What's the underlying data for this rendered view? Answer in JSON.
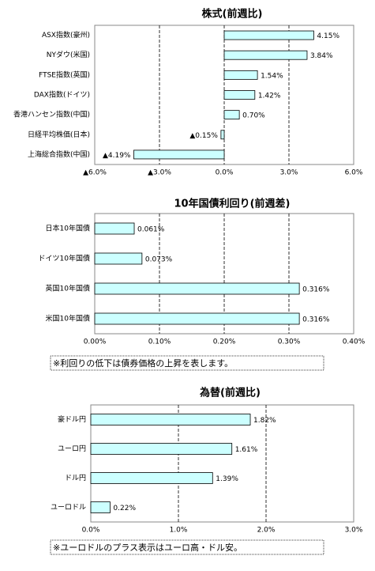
{
  "chart_data": [
    {
      "type": "bar",
      "orientation": "horizontal",
      "title": "株式(前週比)",
      "categories": [
        "ASX指数(豪州)",
        "NYダウ(米国)",
        "FTSE指数(英国)",
        "DAX指数(ドイツ)",
        "香港ハンセン指数(中国)",
        "日経平均株価(日本)",
        "上海総合指数(中国)"
      ],
      "values": [
        4.15,
        3.84,
        1.54,
        1.42,
        0.7,
        -0.15,
        -4.19
      ],
      "value_labels": [
        "4.15%",
        "3.84%",
        "1.54%",
        "1.42%",
        "0.70%",
        "▲0.15%",
        "▲4.19%"
      ],
      "color": "#ccffff",
      "negative_color": "#ff0000",
      "xlim": [
        -6,
        6
      ],
      "xticks": [
        {
          "value": -6,
          "label": "▲6.0%"
        },
        {
          "value": -3,
          "label": "▲3.0%"
        },
        {
          "value": 0,
          "label": "0.0%"
        },
        {
          "value": 3,
          "label": "3.0%"
        },
        {
          "value": 6,
          "label": "6.0%"
        }
      ],
      "grid": true
    },
    {
      "type": "bar",
      "orientation": "horizontal",
      "title": "10年国債利回り(前週差)",
      "categories": [
        "日本10年国債",
        "ドイツ10年国債",
        "英国10年国債",
        "米国10年国債"
      ],
      "values": [
        0.061,
        0.073,
        0.316,
        0.316
      ],
      "value_labels": [
        "0.061%",
        "0.073%",
        "0.316%",
        "0.316%"
      ],
      "color": "#ccffff",
      "xlim": [
        0,
        0.4
      ],
      "xticks": [
        {
          "value": 0,
          "label": "0.00%"
        },
        {
          "value": 0.1,
          "label": "0.10%"
        },
        {
          "value": 0.2,
          "label": "0.20%"
        },
        {
          "value": 0.3,
          "label": "0.30%"
        },
        {
          "value": 0.4,
          "label": "0.40%"
        }
      ],
      "grid": true,
      "note": "※利回りの低下は債券価格の上昇を表します。"
    },
    {
      "type": "bar",
      "orientation": "horizontal",
      "title": "為替(前週比)",
      "categories": [
        "豪ドル円",
        "ユーロ円",
        "ドル円",
        "ユーロドル"
      ],
      "values": [
        1.82,
        1.61,
        1.39,
        0.22
      ],
      "value_labels": [
        "1.82%",
        "1.61%",
        "1.39%",
        "0.22%"
      ],
      "color": "#ccffff",
      "xlim": [
        0,
        3
      ],
      "xticks": [
        {
          "value": 0,
          "label": "0.0%"
        },
        {
          "value": 1,
          "label": "1.0%"
        },
        {
          "value": 2,
          "label": "2.0%"
        },
        {
          "value": 3,
          "label": "3.0%"
        }
      ],
      "grid": true,
      "note": "※ユーロドルのプラス表示はユーロ高・ドル安。"
    }
  ]
}
